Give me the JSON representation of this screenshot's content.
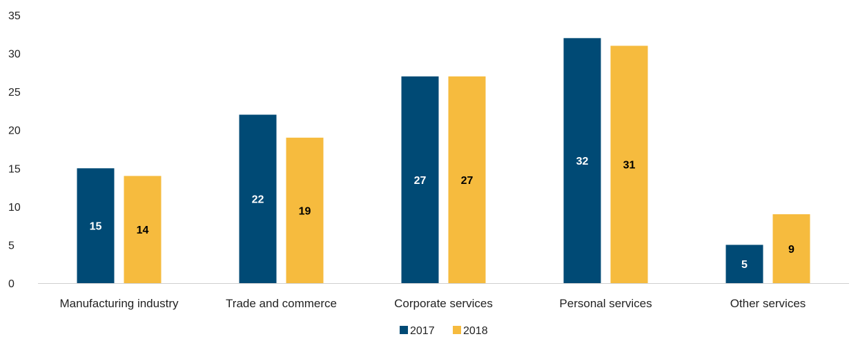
{
  "chart_data": {
    "type": "bar",
    "title": "",
    "xlabel": "",
    "ylabel": "",
    "categories": [
      "Manufacturing industry",
      "Trade and commerce",
      "Corporate services",
      "Personal services",
      "Other services"
    ],
    "series": [
      {
        "name": "2017",
        "values": [
          15,
          22,
          27,
          32,
          5
        ],
        "color": "#004a75",
        "label_color": "#ffffff"
      },
      {
        "name": "2018",
        "values": [
          14,
          19,
          27,
          31,
          9
        ],
        "color": "#f6bb3e",
        "label_color": "#000000"
      }
    ],
    "ylim": [
      0,
      35
    ],
    "yticks": [
      0,
      5,
      10,
      15,
      20,
      25,
      30,
      35
    ],
    "grid": false,
    "legend_position": "bottom-center"
  }
}
